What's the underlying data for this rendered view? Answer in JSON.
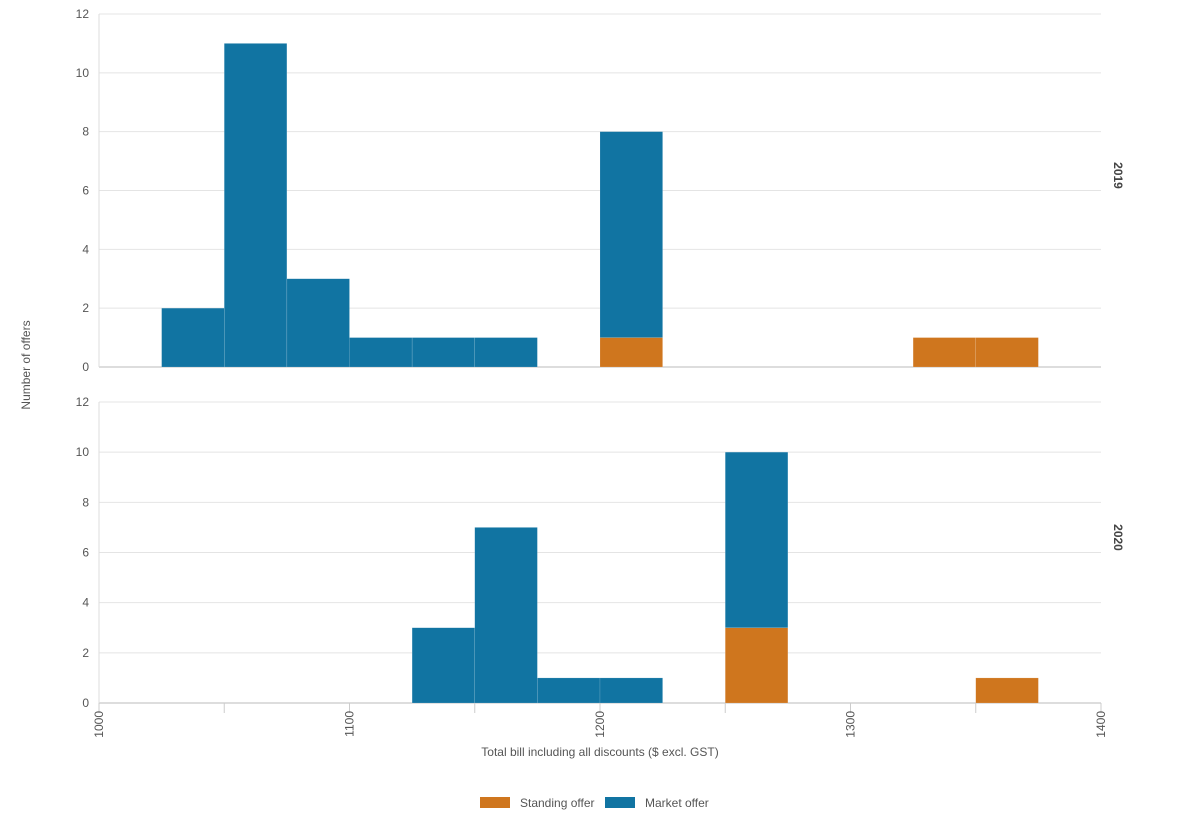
{
  "chart_data": {
    "type": "bar",
    "subtype": "faceted stacked histogram",
    "xlabel": "Total bill including all discounts ($ excl. GST)",
    "ylabel": "Number of offers",
    "xlim": [
      1000,
      1400
    ],
    "x_ticks": [
      1000,
      1100,
      1200,
      1300,
      1400
    ],
    "ylim": [
      0,
      12
    ],
    "y_ticks": [
      0,
      2,
      4,
      6,
      8,
      10,
      12
    ],
    "bin_width": 25,
    "grid": "horizontal",
    "legend_position": "bottom-center",
    "series_colors": {
      "Standing offer": "#cf761e",
      "Market offer": "#1174a2"
    },
    "legend": [
      "Standing offer",
      "Market offer"
    ],
    "panels": [
      {
        "label": "2019",
        "bins": [
          {
            "x0": 1025,
            "x1": 1050,
            "standing": 0,
            "market": 2
          },
          {
            "x0": 1050,
            "x1": 1075,
            "standing": 0,
            "market": 11
          },
          {
            "x0": 1075,
            "x1": 1100,
            "standing": 0,
            "market": 3
          },
          {
            "x0": 1100,
            "x1": 1125,
            "standing": 0,
            "market": 1
          },
          {
            "x0": 1125,
            "x1": 1150,
            "standing": 0,
            "market": 1
          },
          {
            "x0": 1150,
            "x1": 1175,
            "standing": 0,
            "market": 1
          },
          {
            "x0": 1200,
            "x1": 1225,
            "standing": 1,
            "market": 7
          },
          {
            "x0": 1325,
            "x1": 1350,
            "standing": 1,
            "market": 0
          },
          {
            "x0": 1350,
            "x1": 1375,
            "standing": 1,
            "market": 0
          }
        ]
      },
      {
        "label": "2020",
        "bins": [
          {
            "x0": 1125,
            "x1": 1150,
            "standing": 0,
            "market": 3
          },
          {
            "x0": 1150,
            "x1": 1175,
            "standing": 0,
            "market": 7
          },
          {
            "x0": 1175,
            "x1": 1200,
            "standing": 0,
            "market": 1
          },
          {
            "x0": 1200,
            "x1": 1225,
            "standing": 0,
            "market": 1
          },
          {
            "x0": 1250,
            "x1": 1275,
            "standing": 3,
            "market": 7
          },
          {
            "x0": 1350,
            "x1": 1375,
            "standing": 1,
            "market": 0
          }
        ]
      }
    ]
  }
}
